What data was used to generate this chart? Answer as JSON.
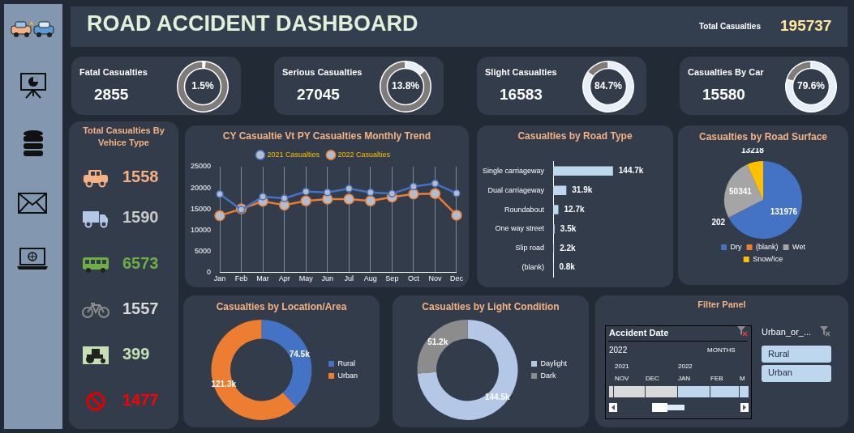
{
  "chart_data": [
    {
      "type": "other",
      "title": "ROAD ACCIDENT DASHBOARD",
      "annotations": [
        "Total Casualties",
        "195737"
      ]
    },
    {
      "type": "donut",
      "title": "Fatal Casualties",
      "annotations": [
        "2855"
      ],
      "categories": [
        null,
        null
      ],
      "values": [
        1.5,
        98.5
      ],
      "colors": [
        "#e7eef8",
        "#7f7b78"
      ],
      "value_labels": [
        "1.5%",
        null
      ],
      "legend": false
    },
    {
      "type": "donut",
      "title": "Serious Casualties",
      "annotations": [
        "27045"
      ],
      "categories": [
        null,
        null
      ],
      "values": [
        13.8,
        86.2
      ],
      "colors": [
        "#e7eef8",
        "#7f7b78"
      ],
      "value_labels": [
        "13.8%",
        null
      ],
      "legend": false
    },
    {
      "type": "donut",
      "title": "Slight Casualties",
      "annotations": [
        "16583"
      ],
      "categories": [
        null,
        null
      ],
      "values": [
        84.7,
        15.3
      ],
      "colors": [
        "#e7eef8",
        "#7f7b78"
      ],
      "value_labels": [
        "84.7%",
        null
      ],
      "legend": false
    },
    {
      "type": "donut",
      "title": "Casualties By Car",
      "annotations": [
        "15580"
      ],
      "categories": [
        null,
        null
      ],
      "values": [
        79.6,
        20.4
      ],
      "colors": [
        "#e7eef8",
        "#7f7b78"
      ],
      "value_labels": [
        "79.6%",
        null
      ],
      "legend": false
    },
    {
      "type": "other",
      "title": "Total Casualties By Vehice Type",
      "annotations": [
        "1558",
        "1590",
        "6573",
        "1557",
        "399",
        "1477"
      ]
    },
    {
      "type": "line",
      "title": "CY Casualtie Vt PY Casualties Monthly Trend",
      "categories": [
        "Jan",
        "Feb",
        "Mar",
        "Apr",
        "May",
        "Jun",
        "Jul",
        "Aug",
        "Sep",
        "Oct",
        "Nov",
        "Dec"
      ],
      "series": [
        {
          "name": "2021 Casualties",
          "color": "#4472c4",
          "values": [
            18500,
            14800,
            17900,
            17500,
            19100,
            18900,
            19800,
            18900,
            18600,
            20300,
            21000,
            18700
          ]
        },
        {
          "name": "2022 Casualties",
          "color": "#ed7d31",
          "values": [
            13400,
            15000,
            16800,
            15900,
            16900,
            17300,
            17300,
            16900,
            17800,
            18500,
            18600,
            13500
          ]
        }
      ],
      "ylim": [
        0,
        25000
      ],
      "yticks": [
        0,
        5000,
        10000,
        15000,
        20000,
        25000
      ],
      "grid": "x",
      "legend": "top",
      "marker": "circle",
      "line_style": "solid"
    },
    {
      "type": "bar",
      "title": "Casualties by Road Type",
      "orientation": "horizontal",
      "categories": [
        "Single carriageway",
        "Dual carriageway",
        "Roundabout",
        "One way street",
        "Slip road",
        "(blank)"
      ],
      "values": [
        144700,
        31900,
        12700,
        3500,
        2200,
        800
      ],
      "value_labels": [
        "144.7k",
        "31.9k",
        "12.7k",
        "3.5k",
        "2.2k",
        "0.8k"
      ],
      "color": "#bdd7ee",
      "tick_labels": "y",
      "legend": false
    },
    {
      "type": "pie",
      "title": "Casualties by Road Surface",
      "categories": [
        "Dry",
        "(blank)",
        "Wet",
        "Snow/Ice"
      ],
      "values": [
        131976,
        202,
        50341,
        13218
      ],
      "colors": [
        "#4472c4",
        "#ed7d31",
        "#a5a5a5",
        "#ffc000"
      ],
      "data_labels": true,
      "legend": "bottom"
    },
    {
      "type": "donut",
      "title": "Casualties by Location/Area",
      "categories": [
        "Rural",
        "Urban"
      ],
      "values": [
        74500,
        121300
      ],
      "colors": [
        "#4472c4",
        "#ed7d31"
      ],
      "value_labels": [
        "74.5k",
        "121.3k"
      ],
      "legend": "right"
    },
    {
      "type": "donut",
      "title": "Casualties by Light Condition",
      "categories": [
        "Daylight",
        "Dark"
      ],
      "values": [
        144500,
        51200
      ],
      "colors": [
        "#b4c7e7",
        "#8c8c8c"
      ],
      "value_labels": [
        "144.5k",
        "51.2k"
      ],
      "legend": "right"
    },
    {
      "type": "other",
      "title": "Filter Panel",
      "annotations": [
        "Accident Date",
        "2022",
        "MONTHS",
        "2021",
        "2022",
        "NOV",
        "DEC",
        "JAN",
        "FEB",
        "M",
        "Urban_or_...",
        "Rural",
        "Urban"
      ]
    }
  ]
}
